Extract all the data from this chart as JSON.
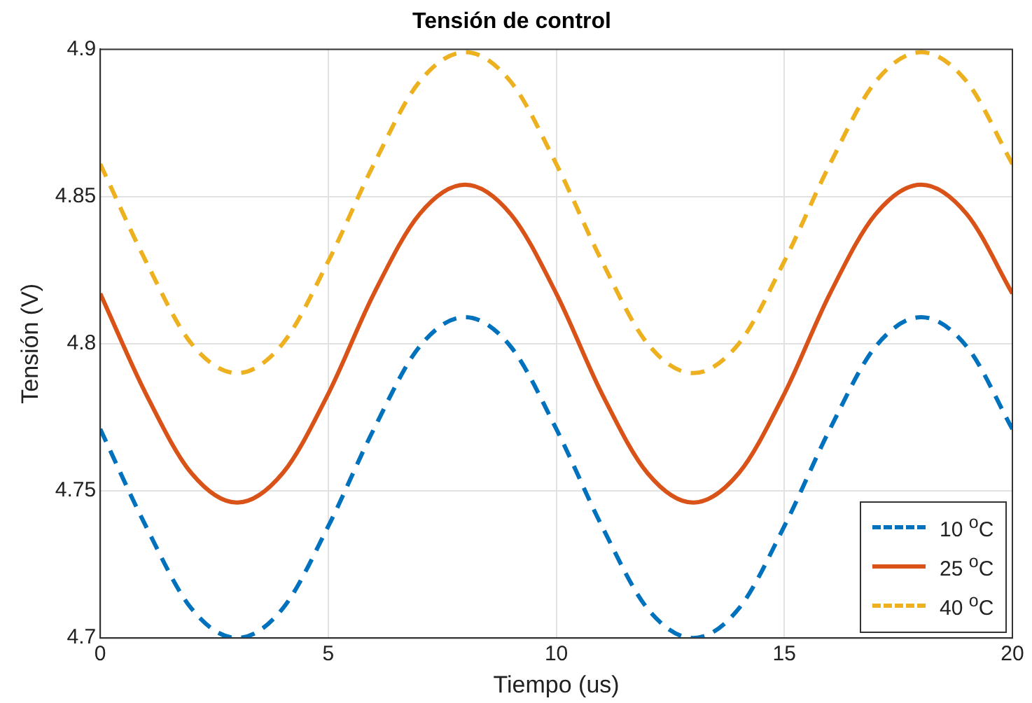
{
  "chart_data": {
    "type": "line",
    "title": "Tensión de control",
    "xlabel": "Tiempo (us)",
    "ylabel": "Tensión (V)",
    "x": [
      0,
      1,
      2,
      3,
      4,
      5,
      6,
      7,
      8,
      9,
      10,
      11,
      12,
      13,
      14,
      15,
      16,
      17,
      18,
      19,
      20
    ],
    "xlim": [
      0,
      20
    ],
    "xticks": [
      0,
      5,
      10,
      15,
      20
    ],
    "ylim": [
      4.7,
      4.9
    ],
    "yticks": [
      4.7,
      4.75,
      4.8,
      4.85,
      4.9
    ],
    "grid": true,
    "legend": "bottom right",
    "marker": "none",
    "series": [
      {
        "name": "10 $^{o}$C",
        "color": "#0072bd",
        "line_style": "dashed",
        "values": [
          4.771,
          4.738,
          4.71,
          4.7,
          4.71,
          4.738,
          4.771,
          4.799,
          4.809,
          4.799,
          4.771,
          4.738,
          4.71,
          4.7,
          4.71,
          4.738,
          4.771,
          4.799,
          4.809,
          4.799,
          4.771
        ]
      },
      {
        "name": "25 $^{o}$C",
        "color": "#d95319",
        "line_style": "solid",
        "values": [
          4.817,
          4.783,
          4.756,
          4.746,
          4.756,
          4.783,
          4.817,
          4.844,
          4.854,
          4.844,
          4.817,
          4.783,
          4.756,
          4.746,
          4.756,
          4.783,
          4.817,
          4.844,
          4.854,
          4.844,
          4.817
        ]
      },
      {
        "name": "40 $^{o}$C",
        "color": "#edb120",
        "line_style": "dashed",
        "values": [
          4.861,
          4.828,
          4.8,
          4.79,
          4.8,
          4.828,
          4.861,
          4.889,
          4.899,
          4.889,
          4.861,
          4.828,
          4.8,
          4.79,
          4.8,
          4.828,
          4.861,
          4.889,
          4.899,
          4.889,
          4.861
        ]
      }
    ]
  }
}
